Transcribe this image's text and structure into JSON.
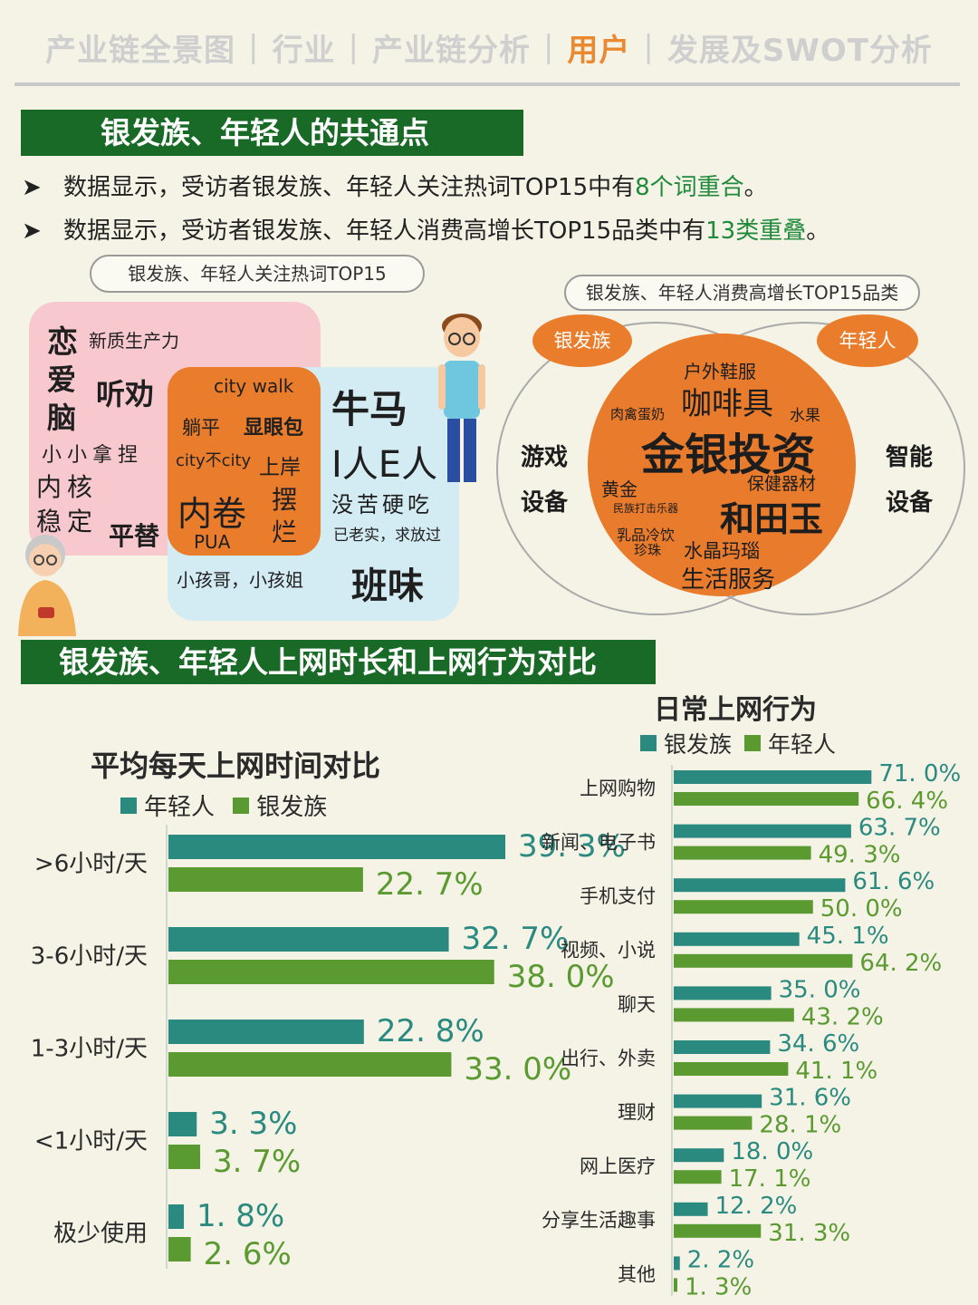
{
  "nav": {
    "items": [
      "产业链全景图",
      "行业",
      "产业链分析",
      "用户",
      "发展及SWOT分析"
    ],
    "active_index": 3,
    "separator": "|",
    "active_color": "#e98a33"
  },
  "section1": {
    "banner": "银发族、年轻人的共通点",
    "bullets": [
      {
        "arrow": "➤",
        "before": "数据显示，受访者银发族、年轻人关注热词TOP15中有",
        "highlight": "8个词重合",
        "after": "。"
      },
      {
        "arrow": "➤",
        "before": "数据显示，受访者银发族、年轻人消费高增长TOP15品类中有",
        "highlight": "13类重叠",
        "after": "。"
      }
    ],
    "wordcloud": {
      "label": "银发族、年轻人关注热词TOP15",
      "silver_words": [
        "恋",
        "新质生产力",
        "爱",
        "脑",
        "听劝",
        "小小拿捏",
        "内核",
        "稳定",
        "平替"
      ],
      "shared_words": [
        "city walk",
        "躺平",
        "显眼包",
        "city不city",
        "上岸",
        "内卷",
        "摆",
        "烂",
        "PUA"
      ],
      "young_words": [
        "牛马",
        "I人E人",
        "没苦硬吃",
        "已老实，求放过",
        "小孩哥，小孩姐",
        "班味"
      ]
    },
    "venn": {
      "label": "银发族、年轻人消费高增长TOP15品类",
      "left_tag": "银发族",
      "right_tag": "年轻人",
      "left_only": [
        "游戏",
        "设备"
      ],
      "right_only": [
        "智能",
        "设备"
      ],
      "overlap": [
        "户外鞋服",
        "咖啡具",
        "肉禽蛋奶",
        "水果",
        "金银投资",
        "黄金",
        "保健器材",
        "民族打击乐器",
        "和田玉",
        "乳品冷饮",
        "珍珠",
        "水晶玛瑙",
        "生活服务"
      ]
    }
  },
  "section2": {
    "banner": "银发族、年轻人上网时长和上网行为对比"
  },
  "chart_data": [
    {
      "type": "bar",
      "orientation": "horizontal",
      "title": "平均每天上网时间对比",
      "categories": [
        ">6小时/天",
        "3-6小时/天",
        "1-3小时/天",
        "<1小时/天",
        "极少使用"
      ],
      "series": [
        {
          "name": "年轻人",
          "color": "#2b8a80",
          "values": [
            39.3,
            32.7,
            22.8,
            3.3,
            1.8
          ],
          "labels": [
            "39. 3%",
            "32. 7%",
            "22. 8%",
            "3. 3%",
            "1. 8%"
          ]
        },
        {
          "name": "银发族",
          "color": "#5a9a30",
          "values": [
            22.7,
            38.0,
            33.0,
            3.7,
            2.6
          ],
          "labels": [
            "22. 7%",
            "38. 0%",
            "33. 0%",
            "3. 7%",
            "2. 6%"
          ]
        }
      ],
      "xlim": [
        0,
        45
      ],
      "legend": "top",
      "grid": false
    },
    {
      "type": "bar",
      "orientation": "horizontal",
      "title": "日常上网行为",
      "categories": [
        "上网购物",
        "新闻、电子书",
        "手机支付",
        "视频、小说",
        "聊天",
        "出行、外卖",
        "理财",
        "网上医疗",
        "分享生活趣事",
        "其他"
      ],
      "series": [
        {
          "name": "银发族",
          "color": "#2b8a80",
          "values": [
            71.0,
            63.7,
            61.6,
            45.1,
            35.0,
            34.6,
            31.6,
            18.0,
            12.2,
            2.2
          ],
          "labels": [
            "71. 0%",
            "63. 7%",
            "61. 6%",
            "45. 1%",
            "35. 0%",
            "34. 6%",
            "31. 6%",
            "18. 0%",
            "12. 2%",
            "2. 2%"
          ]
        },
        {
          "name": "年轻人",
          "color": "#5a9a30",
          "values": [
            66.4,
            49.3,
            50.0,
            64.2,
            43.2,
            41.1,
            28.1,
            17.1,
            31.3,
            1.3
          ],
          "labels": [
            "66. 4%",
            "49. 3%",
            "50. 0%",
            "64. 2%",
            "43. 2%",
            "41. 1%",
            "28. 1%",
            "17. 1%",
            "31. 3%",
            "1. 3%"
          ]
        }
      ],
      "xlim": [
        0,
        80
      ],
      "legend": "top",
      "grid": false
    }
  ],
  "colors": {
    "banner": "#196a26",
    "orange": "#ea7d2c",
    "pink": "#f7c9cf",
    "light_blue": "#d3ebf2",
    "highlight_green": "#1f8a3a"
  }
}
